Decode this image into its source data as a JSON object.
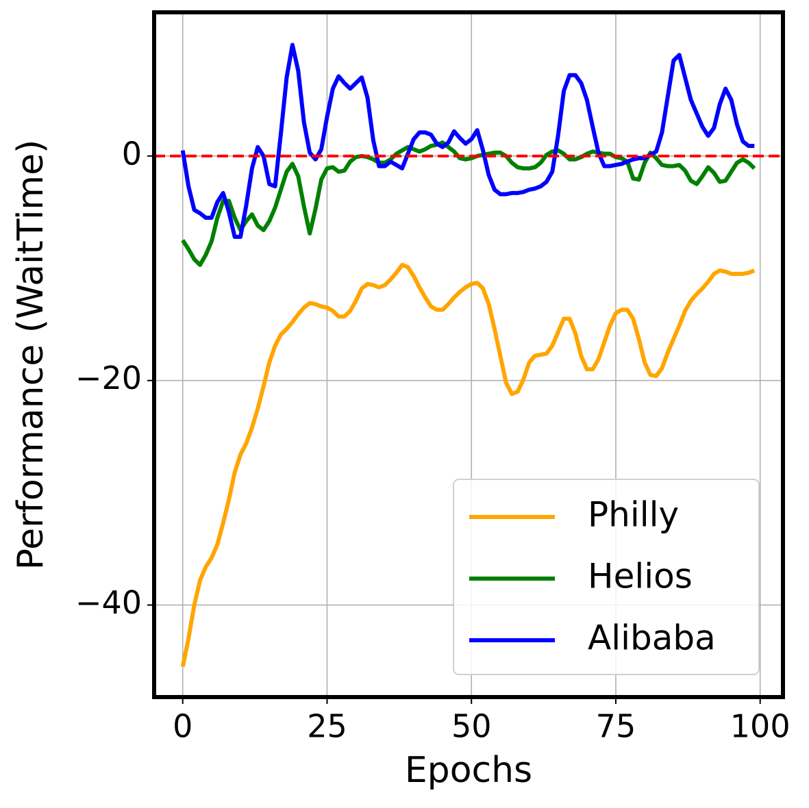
{
  "chart_data": {
    "type": "line",
    "xlabel": "Epochs",
    "ylabel": "Performance (WaitTime)",
    "x": [
      0,
      1,
      2,
      3,
      4,
      5,
      6,
      7,
      8,
      9,
      10,
      11,
      12,
      13,
      14,
      15,
      16,
      17,
      18,
      19,
      20,
      21,
      22,
      23,
      24,
      25,
      26,
      27,
      28,
      29,
      30,
      31,
      32,
      33,
      34,
      35,
      36,
      37,
      38,
      39,
      40,
      41,
      42,
      43,
      44,
      45,
      46,
      47,
      48,
      49,
      50,
      51,
      52,
      53,
      54,
      55,
      56,
      57,
      58,
      59,
      60,
      61,
      62,
      63,
      64,
      65,
      66,
      67,
      68,
      69,
      70,
      71,
      72,
      73,
      74,
      75,
      76,
      77,
      78,
      79,
      80,
      81,
      82,
      83,
      84,
      85,
      86,
      87,
      88,
      89,
      90,
      91,
      92,
      93,
      94,
      95,
      96,
      97,
      98,
      99
    ],
    "series": [
      {
        "name": "Philly",
        "color": "#ffa500",
        "values": [
          -45.5,
          -43,
          -40,
          -37.8,
          -36.6,
          -35.8,
          -34.6,
          -32.7,
          -30.6,
          -28.2,
          -26.6,
          -25.6,
          -24.2,
          -22.5,
          -20.5,
          -18.4,
          -16.9,
          -15.9,
          -15.4,
          -14.8,
          -14.1,
          -13.5,
          -13.1,
          -13.2,
          -13.4,
          -13.5,
          -13.8,
          -14.3,
          -14.3,
          -13.8,
          -12.9,
          -11.8,
          -11.4,
          -11.5,
          -11.7,
          -11.5,
          -11.0,
          -10.4,
          -9.7,
          -9.9,
          -10.7,
          -11.7,
          -12.6,
          -13.4,
          -13.7,
          -13.7,
          -13.2,
          -12.6,
          -12.1,
          -11.7,
          -11.4,
          -11.3,
          -11.8,
          -13.2,
          -15.4,
          -17.8,
          -20.2,
          -21.2,
          -21.0,
          -19.9,
          -18.4,
          -17.8,
          -17.7,
          -17.6,
          -16.9,
          -15.7,
          -14.5,
          -14.5,
          -15.8,
          -17.8,
          -19.0,
          -19.0,
          -18.1,
          -16.6,
          -15.1,
          -14.0,
          -13.7,
          -13.7,
          -14.5,
          -16.3,
          -18.4,
          -19.5,
          -19.6,
          -18.9,
          -17.5,
          -16.3,
          -15.1,
          -13.8,
          -12.9,
          -12.3,
          -11.8,
          -11.2,
          -10.5,
          -10.2,
          -10.3,
          -10.5,
          -10.5,
          -10.5,
          -10.4,
          -10.2
        ]
      },
      {
        "name": "Helios",
        "color": "#008000",
        "values": [
          -7.5,
          -8.3,
          -9.2,
          -9.7,
          -8.8,
          -7.6,
          -5.5,
          -4.0,
          -4.0,
          -5.5,
          -6.6,
          -5.8,
          -5.2,
          -6.2,
          -6.6,
          -5.8,
          -4.6,
          -3.0,
          -1.4,
          -0.7,
          -1.8,
          -4.5,
          -6.9,
          -4.7,
          -2.1,
          -1.1,
          -1.0,
          -1.4,
          -1.3,
          -0.5,
          -0.1,
          0.0,
          -0.1,
          -0.3,
          -0.6,
          -0.6,
          -0.3,
          0.2,
          0.5,
          0.8,
          0.6,
          0.4,
          0.6,
          0.9,
          1.0,
          1.2,
          0.8,
          0.4,
          -0.2,
          -0.3,
          -0.2,
          0.0,
          0.1,
          0.2,
          0.3,
          0.3,
          0.0,
          -0.6,
          -1.0,
          -1.1,
          -1.1,
          -1.0,
          -0.6,
          0.1,
          0.4,
          0.5,
          0.2,
          -0.3,
          -0.3,
          -0.1,
          0.2,
          0.4,
          0.3,
          0.2,
          0.2,
          -0.1,
          -0.2,
          -0.5,
          -2.0,
          -2.1,
          -0.6,
          0.3,
          -0.2,
          -0.8,
          -0.9,
          -0.9,
          -0.8,
          -1.3,
          -2.2,
          -2.5,
          -1.8,
          -1.0,
          -1.5,
          -2.3,
          -2.2,
          -1.4,
          -0.6,
          -0.3,
          -0.6,
          -1.1
        ]
      },
      {
        "name": "Alibaba",
        "color": "#0000ff",
        "values": [
          0.5,
          -2.7,
          -4.8,
          -5.1,
          -5.5,
          -5.5,
          -4.1,
          -3.3,
          -5.0,
          -7.2,
          -7.2,
          -4.4,
          -1.1,
          0.8,
          0.0,
          -2.5,
          -2.7,
          2.0,
          7.0,
          9.9,
          7.6,
          3.0,
          0.3,
          -0.3,
          0.6,
          3.5,
          6.0,
          7.1,
          6.5,
          6.0,
          6.5,
          7.0,
          5.2,
          1.4,
          -0.9,
          -0.9,
          -0.5,
          -0.8,
          -1.1,
          0.2,
          1.5,
          2.1,
          2.1,
          1.9,
          1.1,
          0.8,
          1.2,
          2.2,
          1.6,
          1.1,
          1.5,
          2.3,
          0.5,
          -1.7,
          -3.0,
          -3.4,
          -3.4,
          -3.3,
          -3.3,
          -3.2,
          -3.0,
          -2.9,
          -2.7,
          -2.3,
          -1.4,
          1.8,
          5.8,
          7.2,
          7.2,
          6.5,
          5.0,
          2.6,
          0.3,
          -0.9,
          -0.9,
          -0.8,
          -0.7,
          -0.5,
          -0.3,
          -0.2,
          -0.2,
          0.1,
          0.4,
          2.1,
          5.3,
          8.5,
          9.0,
          7.0,
          5.0,
          3.8,
          2.6,
          1.8,
          2.5,
          4.6,
          6.0,
          5.0,
          2.8,
          1.3,
          0.9,
          0.9
        ]
      }
    ],
    "reference_line": {
      "value": 0,
      "color": "#ff0000"
    },
    "xlim": [
      -4.95,
      103.95
    ],
    "ylim": [
      -48.2,
      12.8
    ],
    "xticks": [
      0,
      25,
      50,
      75,
      100
    ],
    "yticks": [
      {
        "value": -40,
        "label": "−40"
      },
      {
        "value": -20,
        "label": "−20"
      },
      0
    ],
    "grid": true,
    "legend": "lower right"
  }
}
